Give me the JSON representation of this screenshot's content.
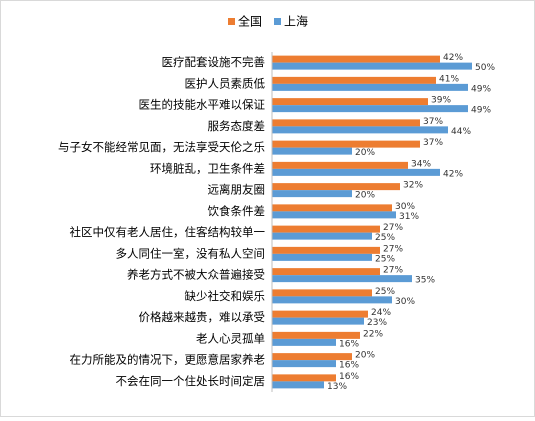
{
  "chart_data": {
    "type": "bar",
    "orientation": "horizontal",
    "categories": [
      "医疗配套设施不完善",
      "医护人员素质低",
      "医生的技能水平难以保证",
      "服务态度差",
      "与子女不能经常见面，无法享受天伦之乐",
      "环境脏乱，卫生条件差",
      "远离朋友圈",
      "饮食条件差",
      "社区中仅有老人居住，住客结构较单一",
      "多人同住一室，没有私人空间",
      "养老方式不被大众普遍接受",
      "缺少社交和娱乐",
      "价格越来越贵，难以承受",
      "老人心灵孤单",
      "在力所能及的情况下，更愿意居家养老",
      "不会在同一个住处长时间定居"
    ],
    "series": [
      {
        "name": "全国",
        "color": "#ed7d31",
        "values": [
          42,
          41,
          39,
          37,
          37,
          34,
          32,
          30,
          27,
          27,
          27,
          25,
          24,
          22,
          20,
          16
        ],
        "value_labels": [
          "42%",
          "41%",
          "39%",
          "37%",
          "37%",
          "34%",
          "32%",
          "30%",
          "27%",
          "27%",
          "27%",
          "25%",
          "24%",
          "22%",
          "20%",
          "16%"
        ]
      },
      {
        "name": "上海",
        "color": "#5b9bd5",
        "values": [
          50,
          49,
          49,
          44,
          20,
          42,
          20,
          31,
          25,
          25,
          35,
          30,
          23,
          16,
          16,
          13
        ],
        "value_labels": [
          "50%",
          "49%",
          "49%",
          "44%",
          "20%",
          "42%",
          "20%",
          "31%",
          "25%",
          "25%",
          "35%",
          "30%",
          "23%",
          "16%",
          "16%",
          "13%"
        ]
      }
    ],
    "legend": "top"
  }
}
